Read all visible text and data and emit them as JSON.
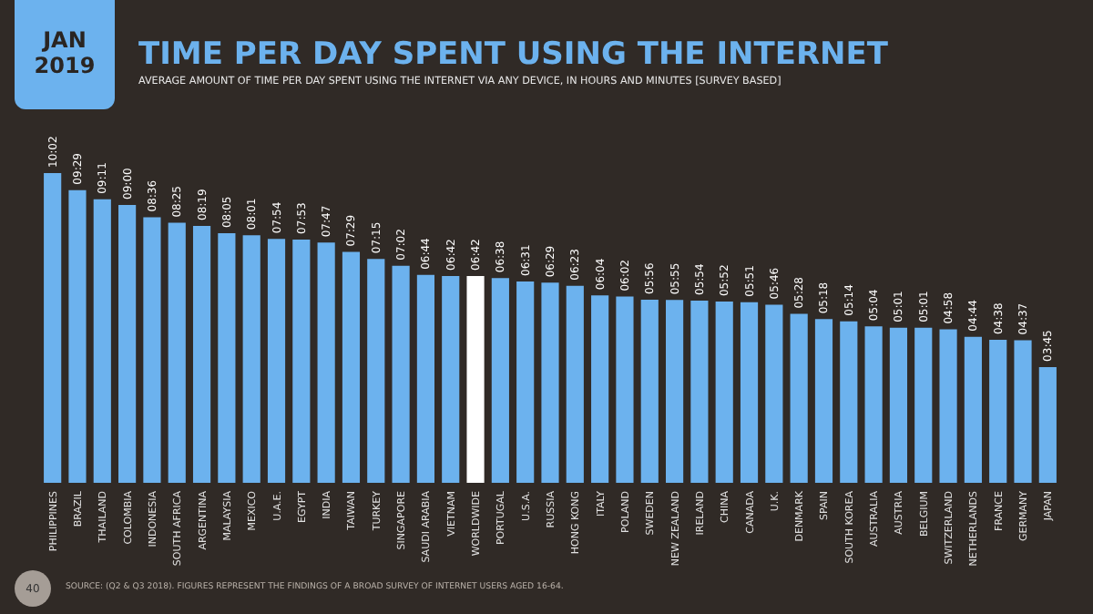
{
  "chart_data": {
    "type": "bar",
    "title": "TIME PER DAY SPENT USING THE INTERNET",
    "subtitle": "AVERAGE AMOUNT OF TIME PER DAY SPENT USING THE INTERNET VIA ANY DEVICE, IN HOURS AND MINUTES [SURVEY BASED]",
    "categories": [
      "PHILIPPINES",
      "BRAZIL",
      "THAILAND",
      "COLOMBIA",
      "INDONESIA",
      "SOUTH AFRICA",
      "ARGENTINA",
      "MALAYSIA",
      "MEXICO",
      "U.A.E.",
      "EGYPT",
      "INDIA",
      "TAIWAN",
      "TURKEY",
      "SINGAPORE",
      "SAUDI ARABIA",
      "VIETNAM",
      "WORLDWIDE",
      "PORTUGAL",
      "U.S.A.",
      "RUSSIA",
      "HONG KONG",
      "ITALY",
      "POLAND",
      "SWEDEN",
      "NEW ZEALAND",
      "IRELAND",
      "CHINA",
      "CANADA",
      "U.K.",
      "DENMARK",
      "SPAIN",
      "SOUTH KOREA",
      "AUSTRALIA",
      "AUSTRIA",
      "BELGIUM",
      "SWITZERLAND",
      "NETHERLANDS",
      "FRANCE",
      "GERMANY",
      "JAPAN"
    ],
    "values": [
      10.03,
      9.48,
      9.18,
      9.0,
      8.6,
      8.42,
      8.32,
      8.08,
      8.02,
      7.9,
      7.88,
      7.78,
      7.48,
      7.25,
      7.03,
      6.73,
      6.7,
      6.7,
      6.63,
      6.52,
      6.48,
      6.38,
      6.07,
      6.03,
      5.93,
      5.92,
      5.9,
      5.87,
      5.85,
      5.77,
      5.47,
      5.3,
      5.23,
      5.07,
      5.02,
      5.02,
      4.97,
      4.73,
      4.63,
      4.62,
      3.75
    ],
    "value_labels": [
      "10:02",
      "09:29",
      "09:11",
      "09:00",
      "08:36",
      "08:25",
      "08:19",
      "08:05",
      "08:01",
      "07:54",
      "07:53",
      "07:47",
      "07:29",
      "07:15",
      "07:02",
      "06:44",
      "06:42",
      "06:42",
      "06:38",
      "06:31",
      "06:29",
      "06:23",
      "06:04",
      "06:02",
      "05:56",
      "05:55",
      "05:54",
      "05:52",
      "05:51",
      "05:46",
      "05:28",
      "05:18",
      "05:14",
      "05:04",
      "05:01",
      "05:01",
      "04:58",
      "04:44",
      "04:38",
      "04:37",
      "03:45"
    ],
    "colors": [
      "#6cb2ee",
      "#6cb2ee",
      "#6cb2ee",
      "#6cb2ee",
      "#6cb2ee",
      "#6cb2ee",
      "#6cb2ee",
      "#6cb2ee",
      "#6cb2ee",
      "#6cb2ee",
      "#6cb2ee",
      "#6cb2ee",
      "#6cb2ee",
      "#6cb2ee",
      "#6cb2ee",
      "#6cb2ee",
      "#6cb2ee",
      "#ffffff",
      "#6cb2ee",
      "#6cb2ee",
      "#6cb2ee",
      "#6cb2ee",
      "#6cb2ee",
      "#6cb2ee",
      "#6cb2ee",
      "#6cb2ee",
      "#6cb2ee",
      "#6cb2ee",
      "#6cb2ee",
      "#6cb2ee",
      "#6cb2ee",
      "#6cb2ee",
      "#6cb2ee",
      "#6cb2ee",
      "#6cb2ee",
      "#6cb2ee",
      "#6cb2ee",
      "#6cb2ee",
      "#6cb2ee",
      "#6cb2ee",
      "#6cb2ee"
    ],
    "annotations": [
      "JAN 2019",
      "40",
      "SOURCE: (Q2 & Q3 2018). FIGURES REPRESENT THE FINDINGS OF A BROAD SURVEY OF INTERNET USERS AGED 16-64."
    ]
  }
}
